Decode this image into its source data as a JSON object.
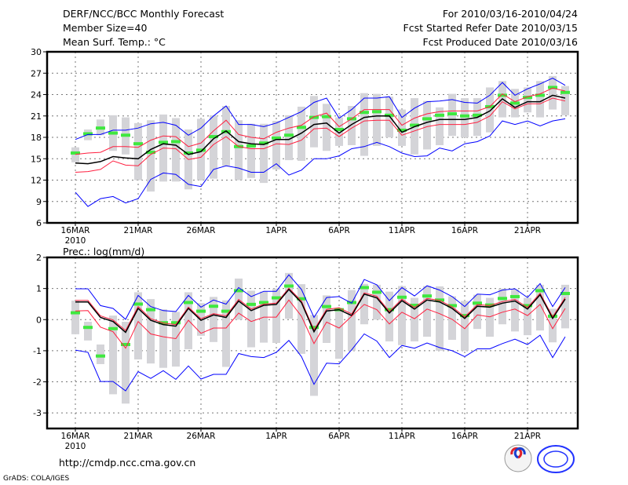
{
  "header": {
    "title": "DERF/NCC/BCC Monthly Forecast",
    "member_size": "Member Size=40",
    "variable": "Mean Surf. Temp.: °C",
    "period": "For 2010/03/16-2010/04/24",
    "start_date": "Fcst Started Refer Date 2010/03/15",
    "produced_date": "Fcst Produced Date 2010/03/16"
  },
  "footer": {
    "url": "http://cmdp.ncc.cma.gov.cn",
    "credit": "GrADS: COLA/IGES",
    "logos": [
      "BCC",
      "NCC"
    ]
  },
  "colors": {
    "max_min": "#0000ff",
    "spread": "#ff1f3f",
    "mean": "#000000",
    "box": "#d4d4d8",
    "marker": "#3fe83f"
  },
  "chart_data": [
    {
      "type": "line",
      "title": "Mean Surf. Temp.: °C",
      "ylim": [
        6,
        30
      ],
      "yticks": [
        6,
        9,
        12,
        15,
        18,
        21,
        24,
        27,
        30
      ],
      "xtick_labels": [
        {
          "i": 0,
          "label": "16MAR",
          "sub": "2010"
        },
        {
          "i": 5,
          "label": "21MAR"
        },
        {
          "i": 10,
          "label": "26MAR"
        },
        {
          "i": 16,
          "label": "1APR"
        },
        {
          "i": 21,
          "label": "6APR"
        },
        {
          "i": 26,
          "label": "11APR"
        },
        {
          "i": 31,
          "label": "16APR"
        },
        {
          "i": 36,
          "label": "21APR"
        }
      ],
      "days": 40,
      "grid": true,
      "series": [
        {
          "name": "max",
          "color": "#0000ff",
          "values": [
            17.7,
            18.4,
            18.4,
            19.0,
            19.0,
            19.3,
            19.9,
            20.1,
            19.7,
            18.3,
            19.3,
            21.0,
            22.4,
            19.8,
            19.8,
            19.5,
            20.0,
            20.8,
            21.6,
            22.9,
            23.5,
            20.7,
            21.9,
            23.5,
            23.5,
            23.7,
            20.8,
            22.1,
            23.0,
            23.1,
            23.3,
            22.9,
            22.8,
            23.9,
            25.7,
            23.9,
            24.8,
            25.5,
            26.3,
            25.3
          ]
        },
        {
          "name": "upper",
          "color": "#ff1f3f",
          "values": [
            15.6,
            15.8,
            15.9,
            16.7,
            16.7,
            16.6,
            17.6,
            18.2,
            18.1,
            16.7,
            17.2,
            18.9,
            20.4,
            18.4,
            18.0,
            17.8,
            18.7,
            19.3,
            19.7,
            20.9,
            21.4,
            19.5,
            20.6,
            21.9,
            21.9,
            21.9,
            19.7,
            20.7,
            21.3,
            21.6,
            21.7,
            21.7,
            21.7,
            22.3,
            24.1,
            23.0,
            23.7,
            24.1,
            24.9,
            24.5
          ]
        },
        {
          "name": "mean",
          "color": "#000000",
          "values": [
            14.4,
            14.3,
            14.6,
            15.3,
            15.1,
            15.0,
            16.3,
            17.1,
            16.9,
            15.6,
            16.0,
            17.8,
            18.9,
            17.4,
            17.1,
            17.0,
            17.7,
            17.7,
            18.6,
            19.8,
            20.0,
            18.6,
            19.8,
            20.8,
            21.0,
            21.0,
            18.7,
            19.5,
            20.1,
            20.5,
            20.5,
            20.5,
            20.8,
            21.7,
            23.4,
            22.2,
            23.0,
            23.0,
            23.9,
            23.5
          ]
        },
        {
          "name": "lower",
          "color": "#ff1f3f",
          "values": [
            13.1,
            13.2,
            13.5,
            14.7,
            14.1,
            14.0,
            15.6,
            16.5,
            16.4,
            14.9,
            15.2,
            17.0,
            18.1,
            16.7,
            16.4,
            16.4,
            17.1,
            17.0,
            17.6,
            19.2,
            19.3,
            18.1,
            19.3,
            20.3,
            20.4,
            20.4,
            18.3,
            18.9,
            19.5,
            19.8,
            19.8,
            19.8,
            20.1,
            21.0,
            23.0,
            22.0,
            22.7,
            22.7,
            23.5,
            23.1
          ]
        },
        {
          "name": "min",
          "color": "#0000ff",
          "values": [
            10.3,
            8.3,
            9.4,
            9.7,
            8.8,
            9.4,
            12.1,
            13.0,
            12.8,
            11.4,
            11.1,
            13.5,
            14.0,
            13.7,
            13.1,
            13.1,
            14.3,
            12.7,
            13.4,
            15.0,
            15.0,
            15.4,
            16.4,
            16.7,
            17.3,
            16.7,
            15.8,
            15.3,
            15.4,
            16.5,
            16.1,
            17.1,
            17.4,
            18.2,
            20.3,
            19.8,
            20.3,
            19.6,
            20.3,
            20.6
          ]
        }
      ],
      "bars_low": [
        14.5,
        17.6,
        18.3,
        16.1,
        15.6,
        12.0,
        10.4,
        11.8,
        11.8,
        10.7,
        12.0,
        12.2,
        14.0,
        12.0,
        12.3,
        11.6,
        13.5,
        14.8,
        14.7,
        16.6,
        16.1,
        16.8,
        16.9,
        15.4,
        16.8,
        18.0,
        16.8,
        15.6,
        16.3,
        16.9,
        18.2,
        18.0,
        18.2,
        18.7,
        20.8,
        20.8,
        21.5,
        20.8,
        21.9,
        21.1
      ],
      "bars_high": [
        16.6,
        19.1,
        20.5,
        21.1,
        20.8,
        20.0,
        20.4,
        21.2,
        20.7,
        19.1,
        20.6,
        21.1,
        22.4,
        20.4,
        19.9,
        19.9,
        20.3,
        21.1,
        22.3,
        23.8,
        22.7,
        20.8,
        22.4,
        24.2,
        24.1,
        23.7,
        21.9,
        23.5,
        23.1,
        22.2,
        24.1,
        23.5,
        23.5,
        25.0,
        25.9,
        24.8,
        25.0,
        25.9,
        26.6,
        25.2
      ],
      "markers": [
        15.8,
        18.5,
        19.3,
        18.6,
        18.3,
        17.1,
        15.9,
        17.3,
        17.4,
        15.8,
        16.2,
        18.1,
        18.8,
        16.7,
        16.8,
        17.2,
        17.9,
        18.3,
        19.4,
        20.8,
        20.9,
        19.1,
        20.6,
        21.5,
        21.6,
        21.1,
        19.0,
        19.7,
        20.6,
        21.1,
        21.3,
        21.0,
        21.1,
        22.3,
        23.9,
        22.8,
        23.6,
        23.9,
        25.0,
        24.3
      ]
    },
    {
      "type": "line",
      "title": "Prec.: log(mm/d)",
      "ylim": [
        -3.5,
        2
      ],
      "yticks": [
        -3,
        -2,
        -1,
        0,
        1,
        2
      ],
      "xtick_labels": [
        {
          "i": 0,
          "label": "16MAR",
          "sub": "2010"
        },
        {
          "i": 5,
          "label": "21MAR"
        },
        {
          "i": 10,
          "label": "26MAR"
        },
        {
          "i": 16,
          "label": "1APR"
        },
        {
          "i": 21,
          "label": "6APR"
        },
        {
          "i": 26,
          "label": "11APR"
        },
        {
          "i": 31,
          "label": "16APR"
        },
        {
          "i": 36,
          "label": "21APR"
        }
      ],
      "days": 40,
      "grid": true,
      "series": [
        {
          "name": "max",
          "color": "#0000ff",
          "values": [
            0.99,
            0.99,
            0.45,
            0.36,
            0.01,
            0.78,
            0.42,
            0.29,
            0.26,
            0.78,
            0.4,
            0.63,
            0.5,
            1.03,
            0.74,
            0.91,
            0.91,
            1.44,
            0.97,
            0.07,
            0.71,
            0.74,
            0.53,
            1.29,
            1.12,
            0.61,
            1.03,
            0.76,
            1.09,
            0.95,
            0.74,
            0.42,
            0.82,
            0.8,
            0.95,
            0.99,
            0.71,
            1.16,
            0.42,
            1.03
          ]
        },
        {
          "name": "upper",
          "color": "#ff1f3f",
          "values": [
            0.62,
            0.62,
            0.12,
            -0.01,
            -0.35,
            0.42,
            0.03,
            -0.11,
            -0.16,
            0.4,
            0.03,
            0.19,
            0.12,
            0.65,
            0.34,
            0.5,
            0.53,
            1.01,
            0.6,
            -0.33,
            0.33,
            0.38,
            0.18,
            0.86,
            0.75,
            0.26,
            0.66,
            0.39,
            0.68,
            0.62,
            0.41,
            0.09,
            0.48,
            0.45,
            0.58,
            0.65,
            0.39,
            0.85,
            0.09,
            0.71
          ]
        },
        {
          "name": "mean",
          "color": "#000000",
          "values": [
            0.57,
            0.57,
            0.07,
            -0.06,
            -0.41,
            0.36,
            -0.02,
            -0.16,
            -0.21,
            0.36,
            -0.02,
            0.15,
            0.07,
            0.6,
            0.29,
            0.46,
            0.49,
            0.97,
            0.55,
            -0.39,
            0.28,
            0.32,
            0.13,
            0.82,
            0.7,
            0.21,
            0.61,
            0.34,
            0.63,
            0.57,
            0.36,
            0.04,
            0.43,
            0.4,
            0.53,
            0.6,
            0.34,
            0.8,
            0.04,
            0.66
          ]
        },
        {
          "name": "lower",
          "color": "#ff1f3f",
          "values": [
            0.28,
            0.29,
            -0.24,
            -0.39,
            -0.92,
            -0.06,
            -0.46,
            -0.55,
            -0.61,
            -0.02,
            -0.44,
            -0.27,
            -0.27,
            0.21,
            -0.06,
            0.08,
            0.08,
            0.63,
            0.11,
            -0.77,
            -0.08,
            -0.27,
            0.11,
            0.49,
            0.32,
            -0.14,
            0.24,
            0.03,
            0.34,
            0.19,
            0.01,
            -0.29,
            0.15,
            0.09,
            0.24,
            0.34,
            0.13,
            0.49,
            -0.29,
            0.36
          ]
        },
        {
          "name": "min",
          "color": "#0000ff",
          "values": [
            -0.98,
            -1.05,
            -1.99,
            -1.99,
            -2.29,
            -1.67,
            -1.89,
            -1.64,
            -1.92,
            -1.49,
            -1.91,
            -1.76,
            -1.76,
            -1.09,
            -1.19,
            -1.22,
            -1.05,
            -0.67,
            -1.19,
            -2.08,
            -1.4,
            -1.42,
            -0.97,
            -0.46,
            -0.69,
            -1.22,
            -0.83,
            -0.92,
            -0.75,
            -0.9,
            -1.0,
            -1.19,
            -0.94,
            -0.94,
            -0.77,
            -0.63,
            -0.8,
            -0.5,
            -1.22,
            -0.55
          ]
        }
      ],
      "bars_low": [
        -0.47,
        -0.67,
        -1.43,
        -2.4,
        -2.7,
        -1.28,
        -1.41,
        -1.55,
        -1.51,
        -0.95,
        -0.52,
        -0.72,
        -1.52,
        0.0,
        -0.89,
        -0.74,
        -0.75,
        0.03,
        -1.1,
        -2.45,
        -0.75,
        -1.26,
        -1.0,
        -0.15,
        0.0,
        -0.7,
        -0.82,
        -0.7,
        -0.55,
        -1.0,
        -0.65,
        -1.0,
        -0.3,
        -0.55,
        -0.15,
        -0.38,
        -0.5,
        -0.35,
        -0.73,
        -0.28
      ],
      "bars_high": [
        0.61,
        -0.07,
        -0.8,
        0.13,
        -0.07,
        0.88,
        0.66,
        0.33,
        0.25,
        0.88,
        0.53,
        0.73,
        0.62,
        1.32,
        0.93,
        0.9,
        1.0,
        1.5,
        1.14,
        0.15,
        0.78,
        0.35,
        0.95,
        1.15,
        1.12,
        0.9,
        1.08,
        0.7,
        1.08,
        1.07,
        0.75,
        0.6,
        0.8,
        0.7,
        1.0,
        0.97,
        0.7,
        1.12,
        0.35,
        1.12
      ],
      "markers": [
        0.22,
        -0.25,
        -1.17,
        -0.29,
        -0.8,
        0.5,
        0.32,
        -0.1,
        -0.1,
        0.55,
        0.27,
        0.43,
        0.27,
        0.93,
        0.49,
        0.55,
        0.7,
        1.08,
        0.67,
        -0.25,
        0.42,
        0.32,
        0.55,
        1.03,
        0.88,
        0.32,
        0.72,
        0.46,
        0.76,
        0.63,
        0.45,
        0.13,
        0.53,
        0.47,
        0.68,
        0.74,
        0.45,
        0.93,
        0.11,
        0.84
      ]
    }
  ]
}
